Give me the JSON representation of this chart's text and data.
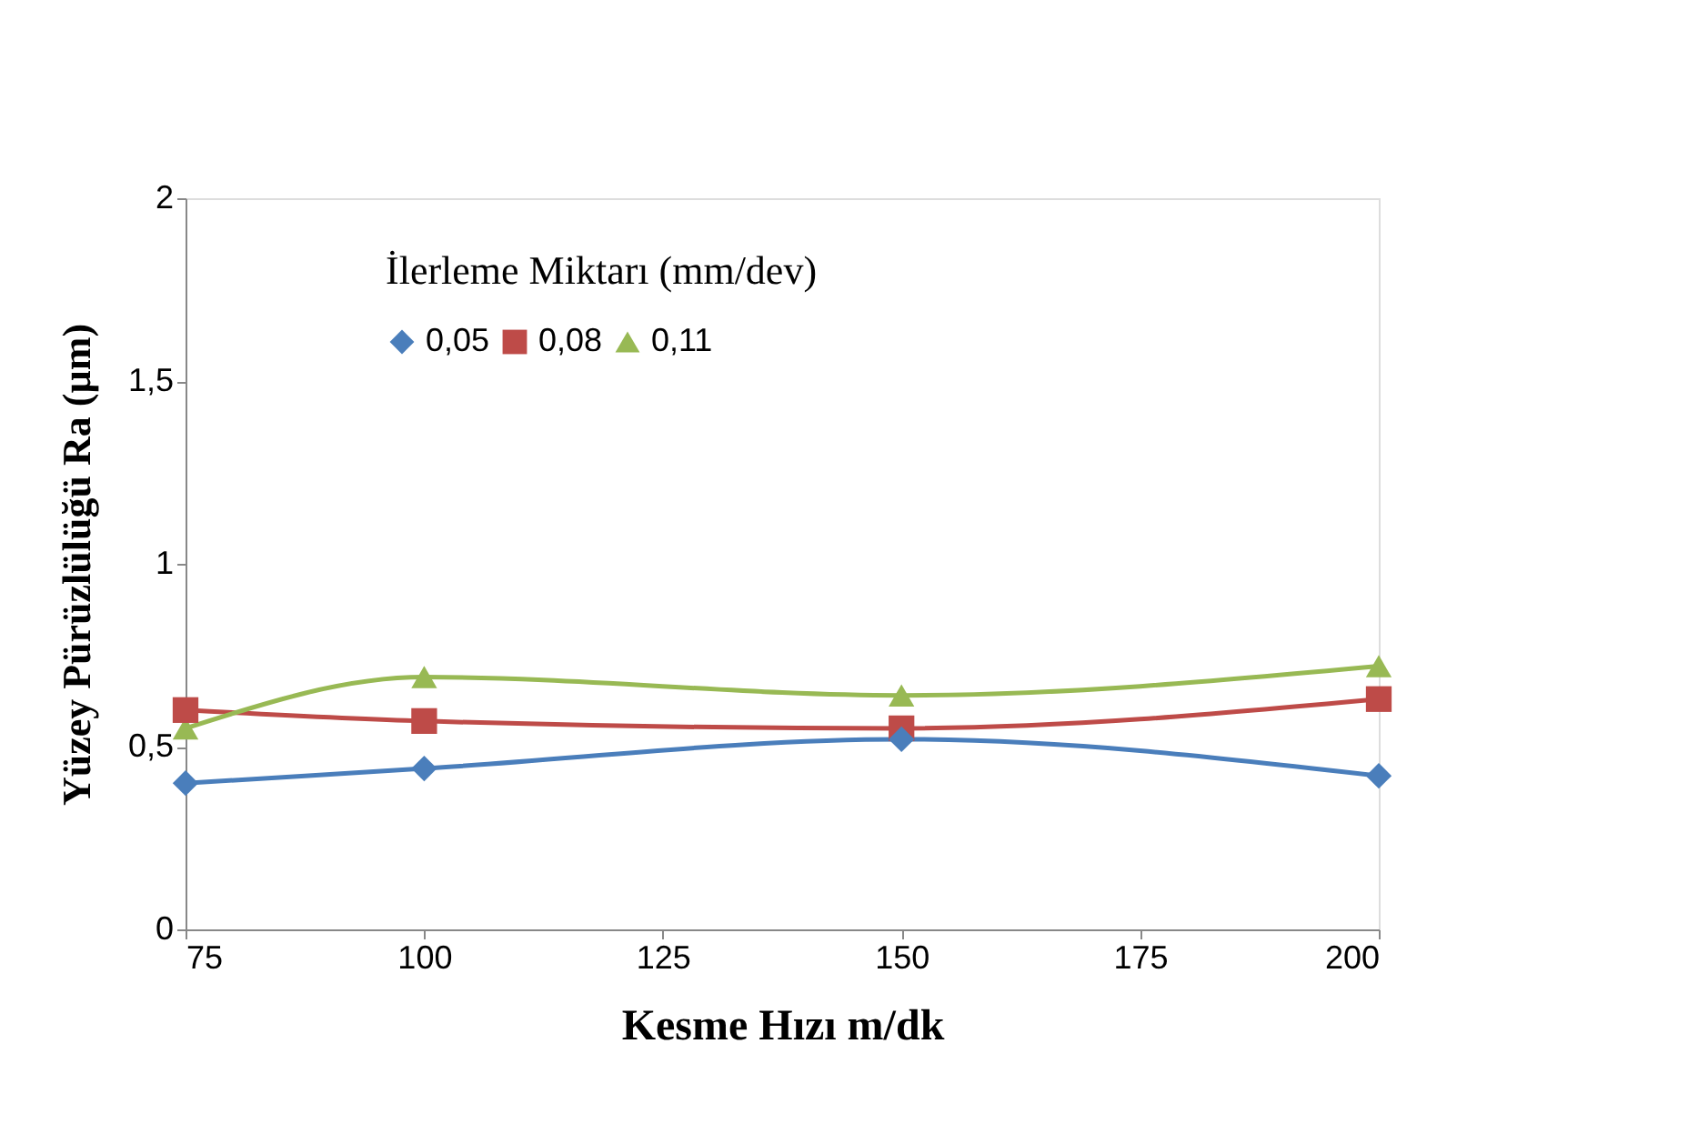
{
  "chart_data": {
    "type": "line",
    "xlabel": "Kesme Hızı m/dk",
    "ylabel": "Yüzey Pürüzlülüğü Ra (µm)",
    "legend_title": "İlerleme Miktarı   (mm/dev)",
    "x": [
      75,
      100,
      150,
      200
    ],
    "series": [
      {
        "name": "0,05",
        "color": "#4a7ebb",
        "marker": "diamond",
        "values": [
          0.4,
          0.44,
          0.52,
          0.42
        ]
      },
      {
        "name": "0,08",
        "color": "#be4b48",
        "marker": "square",
        "values": [
          0.6,
          0.57,
          0.55,
          0.63
        ]
      },
      {
        "name": "0,11",
        "color": "#98b954",
        "marker": "triangle",
        "values": [
          0.55,
          0.69,
          0.64,
          0.72
        ]
      }
    ],
    "xlim": [
      75,
      200
    ],
    "xticks": [
      75,
      100,
      125,
      150,
      175,
      200
    ],
    "ylim": [
      0,
      2
    ],
    "yticks": [
      0,
      {
        "value": 0.5,
        "label": "0,5"
      },
      1,
      {
        "value": 1.5,
        "label": "1,5"
      },
      2
    ],
    "grid": false,
    "legend": "top",
    "line_style": "solid"
  }
}
